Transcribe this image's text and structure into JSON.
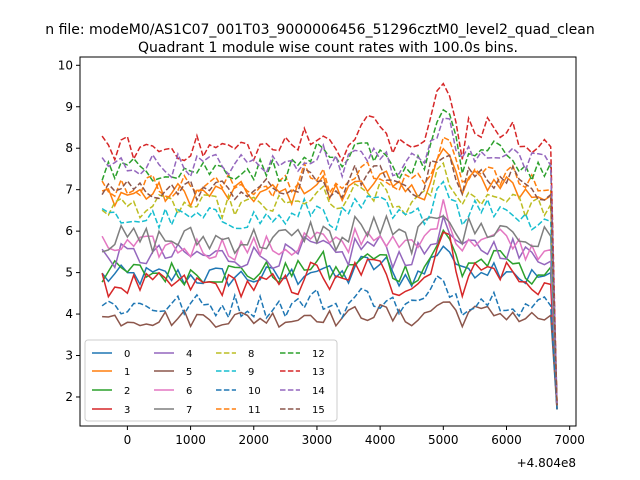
{
  "chart_data": {
    "type": "line",
    "suptitle": "n file: modeM0/AS1C07_001T03_9000006456_51296cztM0_level2_quad_clean",
    "title": "Quadrant 1 module wise count rates with 100.0s bins.",
    "xlabel": "",
    "ylabel": "",
    "x_offset_label": "+4.804e8",
    "xlim": [
      -750,
      7100
    ],
    "ylim": [
      1.3,
      10.2
    ],
    "x_ticks": [
      0,
      1000,
      2000,
      3000,
      4000,
      5000,
      6000,
      7000
    ],
    "x_tick_labels": [
      "0",
      "1000",
      "2000",
      "3000",
      "4000",
      "5000",
      "6000",
      "7000"
    ],
    "y_ticks": [
      2,
      3,
      4,
      5,
      6,
      7,
      8,
      9,
      10
    ],
    "y_tick_labels": [
      "2",
      "3",
      "4",
      "5",
      "6",
      "7",
      "8",
      "9",
      "10"
    ],
    "grid": false,
    "legend_placement": "lower-left",
    "legend_columns": 4,
    "x_start": -400,
    "x_step": 100,
    "series": [
      {
        "name": "0",
        "color": "#1f77b4",
        "dash": "solid",
        "base": 4.9,
        "amp": 0.28,
        "peak_amp": 0.8,
        "end": 1.7
      },
      {
        "name": "1",
        "color": "#ff7f0e",
        "dash": "solid",
        "base": 6.9,
        "amp": 0.3,
        "peak_amp": 1.0,
        "end": 1.8
      },
      {
        "name": "2",
        "color": "#2ca02c",
        "dash": "solid",
        "base": 5.0,
        "amp": 0.3,
        "peak_amp": 0.9,
        "end": 1.7
      },
      {
        "name": "3",
        "color": "#d62728",
        "dash": "solid",
        "base": 4.7,
        "amp": 0.3,
        "peak_amp": 1.2,
        "end": 1.7
      },
      {
        "name": "4",
        "color": "#9467bd",
        "dash": "solid",
        "base": 5.4,
        "amp": 0.3,
        "peak_amp": 0.7,
        "end": 1.8
      },
      {
        "name": "5",
        "color": "#8c564b",
        "dash": "solid",
        "base": 3.9,
        "amp": 0.22,
        "peak_amp": 0.4,
        "end": 1.7
      },
      {
        "name": "6",
        "color": "#e377c2",
        "dash": "solid",
        "base": 5.6,
        "amp": 0.3,
        "peak_amp": 0.9,
        "end": 1.8
      },
      {
        "name": "7",
        "color": "#7f7f7f",
        "dash": "solid",
        "base": 5.8,
        "amp": 0.35,
        "peak_amp": 0.8,
        "end": 1.7
      },
      {
        "name": "8",
        "color": "#bcbd22",
        "dash": "dashed",
        "base": 6.6,
        "amp": 0.28,
        "peak_amp": 0.9,
        "end": 1.9
      },
      {
        "name": "9",
        "color": "#17becf",
        "dash": "dashed",
        "base": 6.3,
        "amp": 0.28,
        "peak_amp": 0.9,
        "end": 1.8
      },
      {
        "name": "10",
        "color": "#1f77b4",
        "dash": "dashed",
        "base": 4.2,
        "amp": 0.3,
        "peak_amp": 0.6,
        "end": 1.7
      },
      {
        "name": "11",
        "color": "#ff7f0e",
        "dash": "dashed",
        "base": 7.1,
        "amp": 0.3,
        "peak_amp": 1.0,
        "end": 1.8
      },
      {
        "name": "12",
        "color": "#2ca02c",
        "dash": "dashed",
        "base": 7.5,
        "amp": 0.3,
        "peak_amp": 1.3,
        "end": 1.8
      },
      {
        "name": "13",
        "color": "#d62728",
        "dash": "dashed",
        "base": 8.0,
        "amp": 0.32,
        "peak_amp": 1.5,
        "end": 1.8
      },
      {
        "name": "14",
        "color": "#9467bd",
        "dash": "dashed",
        "base": 7.6,
        "amp": 0.3,
        "peak_amp": 1.1,
        "end": 1.8
      },
      {
        "name": "15",
        "color": "#8c564b",
        "dash": "dashed",
        "base": 7.0,
        "amp": 0.28,
        "peak_amp": 1.0,
        "end": 1.8
      }
    ]
  }
}
